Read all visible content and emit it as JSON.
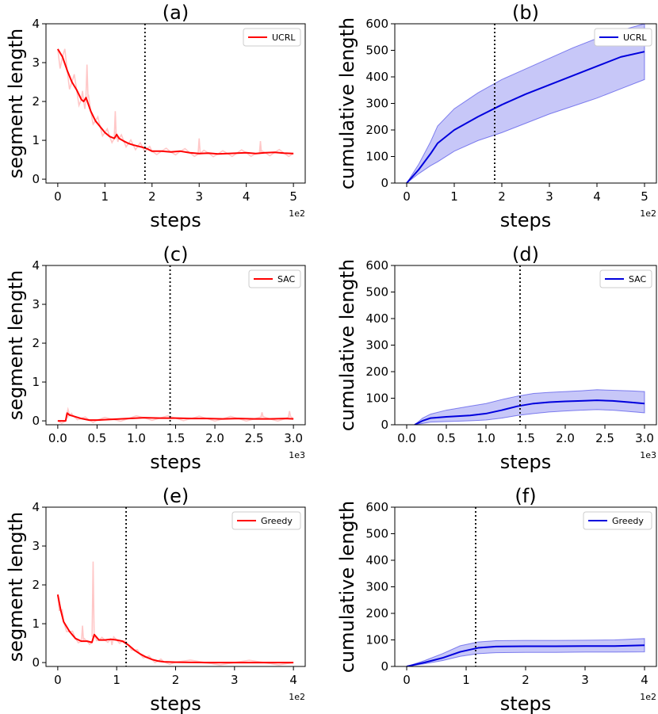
{
  "chart_data": [
    {
      "id": "a",
      "type": "line",
      "title": "(a)",
      "xlabel": "steps",
      "ylabel": "segment length",
      "x_offset_label": "1e2",
      "xlim": [
        -0.25,
        5.25
      ],
      "ylim": [
        -0.1,
        4.0
      ],
      "xticks": [
        0,
        1,
        2,
        3,
        4,
        5
      ],
      "xtick_labels": [
        "0",
        "1",
        "2",
        "3",
        "4",
        "5"
      ],
      "yticks": [
        0,
        1,
        2,
        3,
        4
      ],
      "ytick_labels": [
        "0",
        "1",
        "2",
        "3",
        "4"
      ],
      "vline_x": 1.85,
      "legend": {
        "position": "top-right"
      },
      "series": [
        {
          "name": "UCRL",
          "color": "#ff0000",
          "x": [
            0,
            0.1,
            0.2,
            0.3,
            0.4,
            0.5,
            0.55,
            0.6,
            0.7,
            0.8,
            0.9,
            1.0,
            1.1,
            1.2,
            1.25,
            1.3,
            1.4,
            1.5,
            1.6,
            1.7,
            1.8,
            1.9,
            2.0,
            2.2,
            2.4,
            2.6,
            2.8,
            3.0,
            3.2,
            3.4,
            3.6,
            3.8,
            4.0,
            4.2,
            4.4,
            4.6,
            4.8,
            5.0
          ],
          "y": [
            3.35,
            3.15,
            2.8,
            2.5,
            2.3,
            2.05,
            2.0,
            2.1,
            1.75,
            1.5,
            1.35,
            1.2,
            1.1,
            1.05,
            1.15,
            1.05,
            0.98,
            0.92,
            0.88,
            0.85,
            0.82,
            0.78,
            0.72,
            0.72,
            0.7,
            0.72,
            0.68,
            0.66,
            0.67,
            0.65,
            0.66,
            0.67,
            0.68,
            0.66,
            0.68,
            0.69,
            0.67,
            0.66
          ],
          "raw_spikes": [
            {
              "x": 0.62,
              "y": 2.95
            },
            {
              "x": 1.22,
              "y": 1.75
            },
            {
              "x": 3.0,
              "y": 1.05
            },
            {
              "x": 4.3,
              "y": 0.98
            }
          ]
        }
      ]
    },
    {
      "id": "b",
      "type": "line",
      "title": "(b)",
      "xlabel": "steps",
      "ylabel": "cumulative length",
      "x_offset_label": "1e2",
      "xlim": [
        -0.25,
        5.25
      ],
      "ylim": [
        0,
        600
      ],
      "xticks": [
        0,
        1,
        2,
        3,
        4,
        5
      ],
      "xtick_labels": [
        "0",
        "1",
        "2",
        "3",
        "4",
        "5"
      ],
      "yticks": [
        0,
        100,
        200,
        300,
        400,
        500,
        600
      ],
      "ytick_labels": [
        "0",
        "100",
        "200",
        "300",
        "400",
        "500",
        "600"
      ],
      "vline_x": 1.85,
      "legend": {
        "position": "top-right"
      },
      "series": [
        {
          "name": "UCRL",
          "color": "#0000dd",
          "x": [
            0,
            0.25,
            0.5,
            0.65,
            1.0,
            1.5,
            2.0,
            2.5,
            3.0,
            3.5,
            4.0,
            4.5,
            5.0
          ],
          "y": [
            0,
            50,
            110,
            150,
            200,
            250,
            295,
            335,
            370,
            405,
            440,
            475,
            495
          ],
          "lower": [
            0,
            35,
            65,
            80,
            120,
            160,
            190,
            225,
            260,
            290,
            320,
            355,
            390
          ],
          "upper": [
            0,
            70,
            155,
            215,
            280,
            340,
            390,
            430,
            470,
            510,
            545,
            575,
            600
          ]
        }
      ]
    },
    {
      "id": "c",
      "type": "line",
      "title": "(c)",
      "xlabel": "steps",
      "ylabel": "segment length",
      "x_offset_label": "1e3",
      "xlim": [
        -0.15,
        3.15
      ],
      "ylim": [
        -0.1,
        4.0
      ],
      "xticks": [
        0,
        0.5,
        1.0,
        1.5,
        2.0,
        2.5,
        3.0
      ],
      "xtick_labels": [
        "0.0",
        "0.5",
        "1.0",
        "1.5",
        "2.0",
        "2.5",
        "3.0"
      ],
      "yticks": [
        0,
        1,
        2,
        3,
        4
      ],
      "ytick_labels": [
        "0",
        "1",
        "2",
        "3",
        "4"
      ],
      "vline_x": 1.43,
      "legend": {
        "position": "top-right"
      },
      "series": [
        {
          "name": "SAC",
          "color": "#ff0000",
          "x": [
            0,
            0.1,
            0.12,
            0.15,
            0.2,
            0.3,
            0.4,
            0.5,
            0.7,
            0.9,
            1.1,
            1.3,
            1.5,
            1.7,
            1.9,
            2.1,
            2.3,
            2.5,
            2.7,
            2.9,
            3.0
          ],
          "y": [
            0,
            0,
            0.2,
            0.15,
            0.12,
            0.06,
            0.02,
            0.02,
            0.04,
            0.06,
            0.08,
            0.07,
            0.07,
            0.06,
            0.06,
            0.05,
            0.06,
            0.05,
            0.05,
            0.06,
            0.05
          ],
          "raw_spikes": [
            {
              "x": 0.13,
              "y": 0.3
            },
            {
              "x": 2.6,
              "y": 0.22
            },
            {
              "x": 2.95,
              "y": 0.25
            }
          ]
        }
      ]
    },
    {
      "id": "d",
      "type": "line",
      "title": "(d)",
      "xlabel": "steps",
      "ylabel": "cumulative length",
      "x_offset_label": "1e3",
      "xlim": [
        -0.15,
        3.15
      ],
      "ylim": [
        0,
        600
      ],
      "xticks": [
        0,
        0.5,
        1.0,
        1.5,
        2.0,
        2.5,
        3.0
      ],
      "xtick_labels": [
        "0.0",
        "0.5",
        "1.0",
        "1.5",
        "2.0",
        "2.5",
        "3.0"
      ],
      "yticks": [
        0,
        100,
        200,
        300,
        400,
        500,
        600
      ],
      "ytick_labels": [
        "0",
        "100",
        "200",
        "300",
        "400",
        "500",
        "600"
      ],
      "vline_x": 1.43,
      "legend": {
        "position": "top-right"
      },
      "series": [
        {
          "name": "SAC",
          "color": "#0000dd",
          "x": [
            0.1,
            0.2,
            0.3,
            0.5,
            0.8,
            1.0,
            1.2,
            1.4,
            1.6,
            1.8,
            2.0,
            2.2,
            2.4,
            2.6,
            2.8,
            3.0
          ],
          "y": [
            0,
            15,
            25,
            30,
            35,
            42,
            55,
            70,
            80,
            85,
            88,
            90,
            92,
            90,
            85,
            80
          ],
          "lower": [
            0,
            5,
            10,
            12,
            15,
            18,
            25,
            35,
            42,
            48,
            52,
            55,
            57,
            55,
            50,
            45
          ],
          "upper": [
            0,
            25,
            40,
            55,
            70,
            80,
            95,
            108,
            118,
            122,
            125,
            128,
            132,
            130,
            128,
            125
          ]
        }
      ]
    },
    {
      "id": "e",
      "type": "line",
      "title": "(e)",
      "xlabel": "steps",
      "ylabel": "segment length",
      "x_offset_label": "1e2",
      "xlim": [
        -0.2,
        4.2
      ],
      "ylim": [
        -0.1,
        4.0
      ],
      "xticks": [
        0,
        1,
        2,
        3,
        4
      ],
      "xtick_labels": [
        "0",
        "1",
        "2",
        "3",
        "4"
      ],
      "yticks": [
        0,
        1,
        2,
        3,
        4
      ],
      "ytick_labels": [
        "0",
        "1",
        "2",
        "3",
        "4"
      ],
      "vline_x": 1.16,
      "legend": {
        "position": "top-right"
      },
      "series": [
        {
          "name": "Greedy",
          "color": "#ff0000",
          "x": [
            0,
            0.05,
            0.1,
            0.2,
            0.3,
            0.4,
            0.5,
            0.58,
            0.62,
            0.7,
            0.8,
            0.9,
            1.0,
            1.1,
            1.2,
            1.3,
            1.4,
            1.5,
            1.6,
            1.7,
            1.8,
            2.0,
            2.5,
            3.0,
            3.5,
            4.0
          ],
          "y": [
            1.75,
            1.35,
            1.05,
            0.8,
            0.62,
            0.55,
            0.55,
            0.52,
            0.72,
            0.58,
            0.58,
            0.6,
            0.58,
            0.55,
            0.45,
            0.32,
            0.22,
            0.14,
            0.08,
            0.04,
            0.02,
            0.01,
            0,
            0,
            0,
            0
          ],
          "raw_spikes": [
            {
              "x": 0.6,
              "y": 2.6
            },
            {
              "x": 0.42,
              "y": 0.95
            },
            {
              "x": 0.92,
              "y": 0.45
            }
          ]
        }
      ]
    },
    {
      "id": "f",
      "type": "line",
      "title": "(f)",
      "xlabel": "steps",
      "ylabel": "cumulative length",
      "x_offset_label": "1e2",
      "xlim": [
        -0.2,
        4.2
      ],
      "ylim": [
        0,
        600
      ],
      "xticks": [
        0,
        1,
        2,
        3,
        4
      ],
      "xtick_labels": [
        "0",
        "1",
        "2",
        "3",
        "4"
      ],
      "yticks": [
        0,
        100,
        200,
        300,
        400,
        500,
        600
      ],
      "ytick_labels": [
        "0",
        "100",
        "200",
        "300",
        "400",
        "500",
        "600"
      ],
      "vline_x": 1.16,
      "legend": {
        "position": "top-right"
      },
      "series": [
        {
          "name": "Greedy",
          "color": "#0000dd",
          "x": [
            0,
            0.3,
            0.6,
            0.9,
            1.2,
            1.5,
            2.0,
            2.5,
            3.0,
            3.5,
            4.0
          ],
          "y": [
            0,
            15,
            32,
            55,
            70,
            75,
            76,
            76,
            77,
            77,
            80
          ],
          "lower": [
            0,
            10,
            22,
            38,
            48,
            52,
            53,
            53,
            54,
            54,
            55
          ],
          "upper": [
            0,
            22,
            48,
            78,
            92,
            97,
            98,
            98,
            99,
            100,
            105
          ]
        }
      ]
    }
  ]
}
